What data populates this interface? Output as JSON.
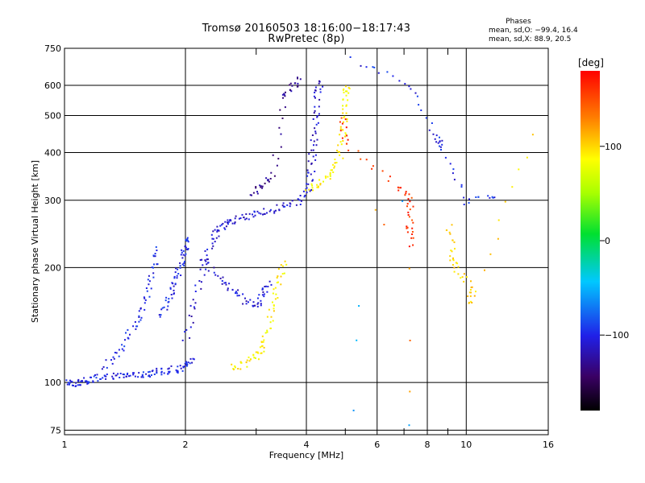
{
  "chart_data": {
    "type": "scatter",
    "title": "Tromsø 20160503 18:16:00−18:17:43",
    "subtitle": "RwPretec (8p)",
    "xlabel": "Frequency [MHz]",
    "ylabel": "Stationary phase Virtual Height [km]",
    "x_scale": "log",
    "y_scale": "log",
    "xlim": [
      1,
      16
    ],
    "ylim": [
      73,
      750
    ],
    "x_ticks": [
      1,
      2,
      4,
      6,
      8,
      10,
      16
    ],
    "x_tick_labels": [
      "1",
      "2",
      "4",
      "6",
      "8",
      "10",
      "16"
    ],
    "x_minor_ticks": [
      3,
      5,
      7,
      9
    ],
    "y_ticks": [
      75,
      100,
      200,
      300,
      400,
      500,
      600,
      750
    ],
    "y_tick_labels": [
      "75",
      "100",
      "200",
      "300",
      "400",
      "500",
      "600",
      "750"
    ],
    "grid": true,
    "phase_stats": {
      "title": "Phases",
      "o_line": "mean, sd,O: −99.4, 16.4",
      "x_line": "mean, sd,X:  88.9, 20.5"
    },
    "colorbar": {
      "label": "[deg]",
      "range": [
        -180,
        180
      ],
      "ticks": [
        100,
        0,
        -100
      ],
      "tick_labels": [
        "100",
        "0",
        "−100"
      ]
    },
    "traces": [
      {
        "phase": -100,
        "points": [
          [
            1.0,
            101
          ],
          [
            1.05,
            100
          ],
          [
            1.1,
            101
          ],
          [
            1.15,
            102
          ],
          [
            1.2,
            103
          ],
          [
            1.3,
            104
          ],
          [
            1.4,
            105
          ],
          [
            1.5,
            106
          ],
          [
            1.6,
            106
          ],
          [
            1.7,
            107
          ],
          [
            1.8,
            108
          ],
          [
            1.9,
            109
          ],
          [
            2.0,
            111
          ],
          [
            2.1,
            115
          ]
        ]
      },
      {
        "phase": -100,
        "points": [
          [
            1.25,
            110
          ],
          [
            1.35,
            120
          ],
          [
            1.45,
            135
          ],
          [
            1.55,
            150
          ],
          [
            1.6,
            170
          ],
          [
            1.65,
            200
          ],
          [
            1.7,
            225
          ]
        ]
      },
      {
        "phase": -100,
        "points": [
          [
            1.7,
            150
          ],
          [
            1.8,
            165
          ],
          [
            1.85,
            180
          ],
          [
            1.9,
            195
          ],
          [
            1.95,
            210
          ],
          [
            2.0,
            225
          ],
          [
            2.05,
            240
          ]
        ]
      },
      {
        "phase": -110,
        "points": [
          [
            2.0,
            130
          ],
          [
            2.1,
            160
          ],
          [
            2.2,
            200
          ],
          [
            2.3,
            230
          ],
          [
            2.4,
            250
          ],
          [
            2.5,
            262
          ],
          [
            2.6,
            268
          ],
          [
            2.8,
            272
          ],
          [
            3.0,
            278
          ],
          [
            3.3,
            285
          ],
          [
            3.6,
            292
          ],
          [
            3.9,
            305
          ],
          [
            4.05,
            330
          ],
          [
            4.1,
            370
          ],
          [
            4.15,
            420
          ],
          [
            4.2,
            490
          ],
          [
            4.25,
            560
          ],
          [
            4.3,
            620
          ]
        ]
      },
      {
        "phase": -110,
        "points": [
          [
            2.2,
            210
          ],
          [
            2.4,
            190
          ],
          [
            2.6,
            175
          ],
          [
            2.8,
            165
          ],
          [
            3.0,
            160
          ],
          [
            3.1,
            170
          ],
          [
            3.2,
            185
          ]
        ]
      },
      {
        "phase": -130,
        "points": [
          [
            2.9,
            310
          ],
          [
            3.1,
            330
          ],
          [
            3.3,
            350
          ],
          [
            3.5,
            560
          ],
          [
            3.7,
            600
          ],
          [
            3.8,
            630
          ]
        ]
      },
      {
        "phase": 90,
        "points": [
          [
            2.6,
            110
          ],
          [
            2.8,
            112
          ],
          [
            3.0,
            118
          ],
          [
            3.1,
            125
          ],
          [
            3.2,
            140
          ],
          [
            3.3,
            160
          ],
          [
            3.4,
            185
          ],
          [
            3.5,
            210
          ]
        ]
      },
      {
        "phase": 90,
        "points": [
          [
            4.0,
            320
          ],
          [
            4.3,
            335
          ],
          [
            4.6,
            355
          ],
          [
            4.8,
            390
          ],
          [
            4.9,
            440
          ],
          [
            4.95,
            500
          ],
          [
            5.0,
            560
          ],
          [
            5.0,
            600
          ]
        ]
      },
      {
        "phase": 160,
        "points": [
          [
            4.9,
            500
          ],
          [
            5.0,
            420
          ],
          [
            6.7,
            330
          ],
          [
            7.2,
            300
          ],
          [
            7.2,
            260
          ],
          [
            7.2,
            230
          ]
        ]
      },
      {
        "phase": 130,
        "points": [
          [
            7.2,
            200
          ],
          [
            7.2,
            130
          ],
          [
            7.2,
            95
          ],
          [
            5.9,
            285
          ],
          [
            6.2,
            260
          ]
        ]
      },
      {
        "phase": -100,
        "points": [
          [
            5.2,
            700
          ],
          [
            7.2,
            610
          ],
          [
            8.5,
            440
          ],
          [
            8.5,
            420
          ],
          [
            10.0,
            300
          ],
          [
            11.8,
            305
          ]
        ]
      },
      {
        "phase": 100,
        "points": [
          [
            9.0,
            260
          ],
          [
            9.2,
            220
          ],
          [
            9.3,
            200
          ],
          [
            10.2,
            180
          ],
          [
            10.3,
            160
          ],
          [
            14.5,
            440
          ]
        ]
      },
      {
        "phase": -60,
        "points": [
          [
            5.3,
            130
          ],
          [
            5.4,
            160
          ],
          [
            5.2,
            85
          ],
          [
            6.9,
            300
          ],
          [
            7.2,
            78
          ]
        ]
      }
    ]
  }
}
